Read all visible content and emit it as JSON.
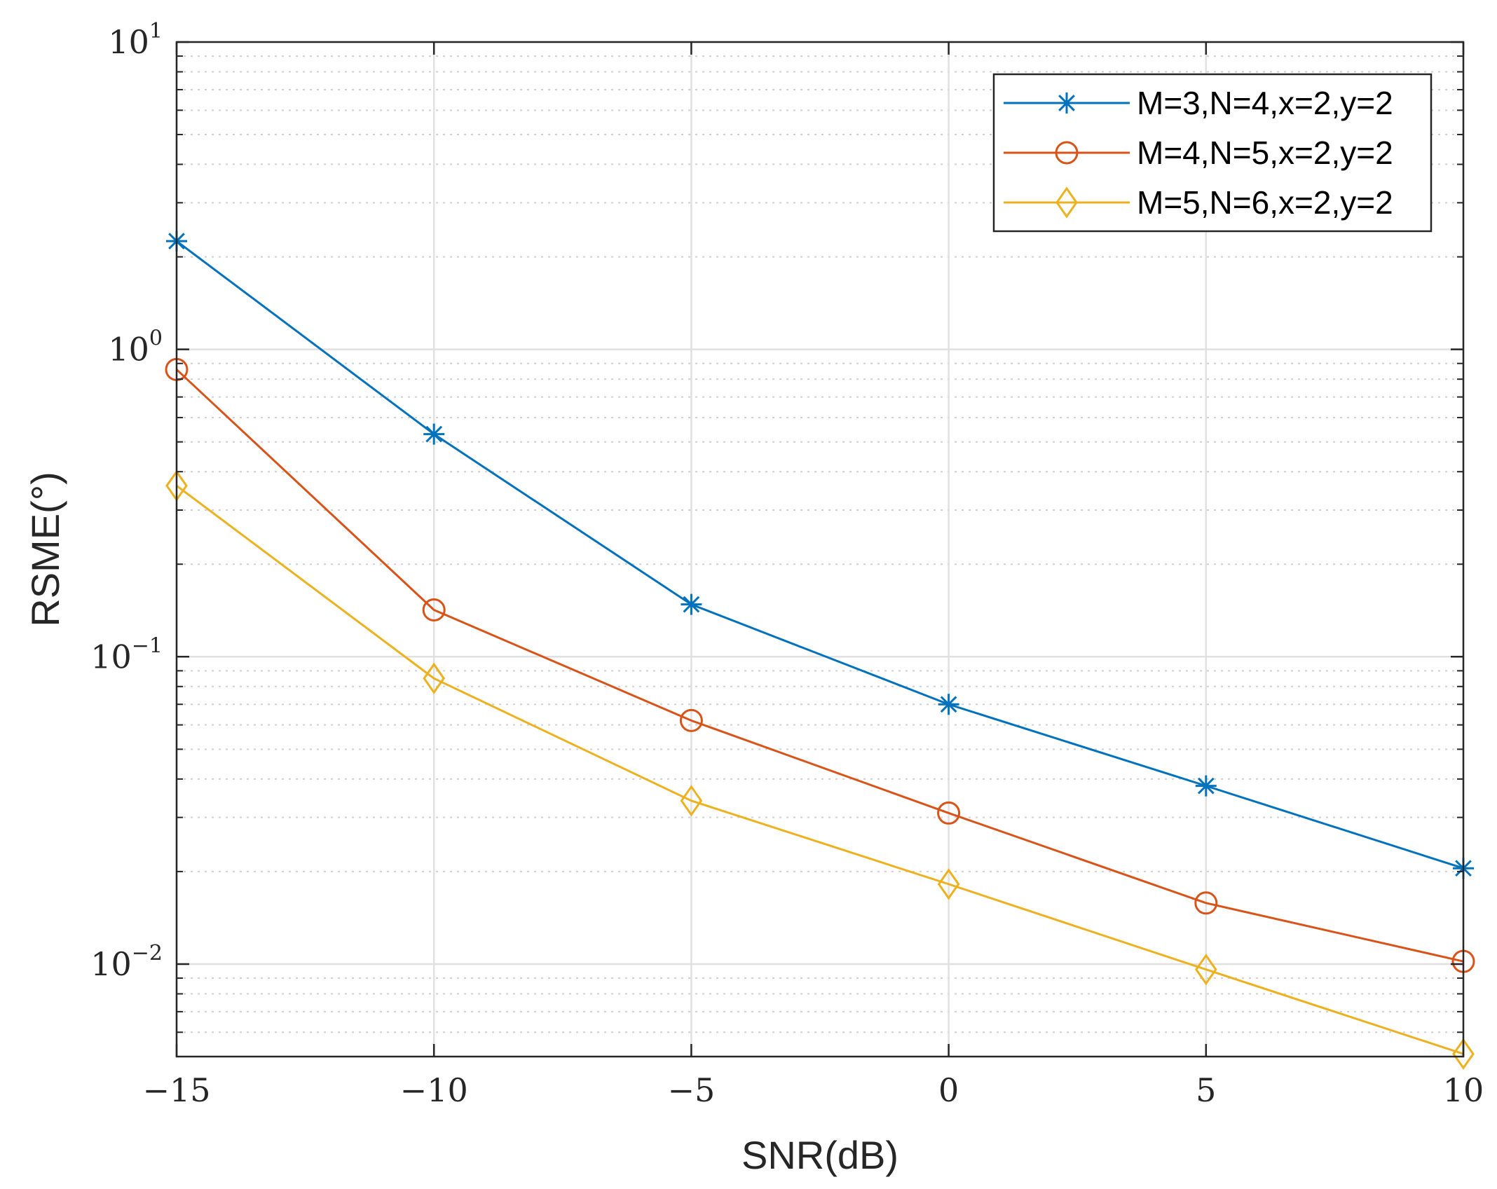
{
  "chart_data": {
    "type": "line",
    "title": "",
    "xlabel": "SNR(dB)",
    "ylabel": "RSME(°)",
    "xscale": "linear",
    "yscale": "log",
    "xlim": [
      -15,
      10
    ],
    "ylim": [
      0.005,
      10
    ],
    "x": [
      -15,
      -10,
      -5,
      0,
      5,
      10
    ],
    "xticks": [
      -15,
      -10,
      -5,
      0,
      5,
      10
    ],
    "xtick_labels": [
      "−15",
      "−10",
      "−5",
      "0",
      "5",
      "10"
    ],
    "yticks": [
      {
        "value": 10,
        "base": "10",
        "exp": "1"
      },
      {
        "value": 1,
        "base": "10",
        "exp": "0"
      },
      {
        "value": 0.1,
        "base": "10",
        "exp": "−1"
      },
      {
        "value": 0.01,
        "base": "10",
        "exp": "−2"
      }
    ],
    "grid": true,
    "legend_position": "top-right",
    "series": [
      {
        "name": "M=3,N=4,x=2,y=2",
        "color": "#0072BD",
        "marker": "asterisk",
        "values": [
          2.25,
          0.53,
          0.148,
          0.07,
          0.038,
          0.0205
        ]
      },
      {
        "name": "M=4,N=5,x=2,y=2",
        "color": "#D95319",
        "marker": "circle",
        "values": [
          0.86,
          0.142,
          0.062,
          0.031,
          0.0158,
          0.0102
        ]
      },
      {
        "name": "M=5,N=6,x=2,y=2",
        "color": "#EDB120",
        "marker": "diamond",
        "values": [
          0.36,
          0.085,
          0.034,
          0.0182,
          0.0096,
          0.0051
        ]
      }
    ]
  }
}
